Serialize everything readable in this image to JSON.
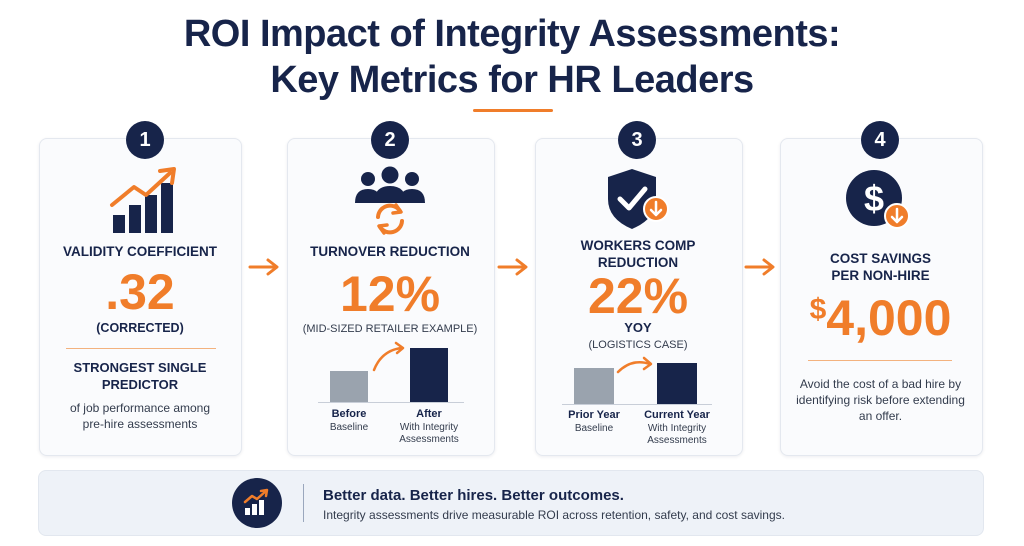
{
  "header": {
    "title_line1": "ROI Impact of Integrity Assessments:",
    "title_line2": "Key Metrics for HR Leaders"
  },
  "colors": {
    "navy": "#17244a",
    "orange": "#f07d2a",
    "gray_bar": "#9aa3ae"
  },
  "cards": [
    {
      "number": "1",
      "icon": "growth-chart-icon",
      "label": "VALIDITY COEFFICIENT",
      "value": ".32",
      "value_note": "(CORRECTED)",
      "highlight_line1": "STRONGEST SINGLE",
      "highlight_line2": "PREDICTOR",
      "body_line1": "of job performance among",
      "body_line2": "pre-hire assessments"
    },
    {
      "number": "2",
      "icon": "team-cycle-icon",
      "label": "TURNOVER REDUCTION",
      "value": "12%",
      "value_note": "(MID-SIZED RETAILER EXAMPLE)",
      "bars": [
        {
          "label": "Before",
          "sub_line1": "Baseline",
          "sub_line2": "",
          "level": 0.48,
          "color": "gray"
        },
        {
          "label": "After",
          "sub_line1": "With Integrity",
          "sub_line2": "Assessments",
          "level": 0.85,
          "color": "navy"
        }
      ]
    },
    {
      "number": "3",
      "icon": "shield-check-icon",
      "label_line1": "WORKERS COMP",
      "label_line2": "REDUCTION",
      "value": "22%",
      "value_sub": "YOY",
      "value_note": "(LOGISTICS CASE)",
      "bars": [
        {
          "label": "Prior Year",
          "sub_line1": "Baseline",
          "sub_line2": "",
          "level": 0.5,
          "color": "gray"
        },
        {
          "label": "Current Year",
          "sub_line1": "With Integrity",
          "sub_line2": "Assessments",
          "level": 0.57,
          "color": "navy"
        }
      ]
    },
    {
      "number": "4",
      "icon": "dollar-down-icon",
      "label_line1": "COST SAVINGS",
      "label_line2": "PER NON-HIRE",
      "value_currency": "$",
      "value": "4,000",
      "body_line1": "Avoid the cost of a bad hire by",
      "body_line2": "identifying risk before extending",
      "body_line3": "an offer."
    }
  ],
  "footer": {
    "icon": "growth-chart-icon",
    "title": "Better data. Better hires. Better outcomes.",
    "text": "Integrity assessments drive measurable ROI across retention, safety, and cost savings."
  }
}
